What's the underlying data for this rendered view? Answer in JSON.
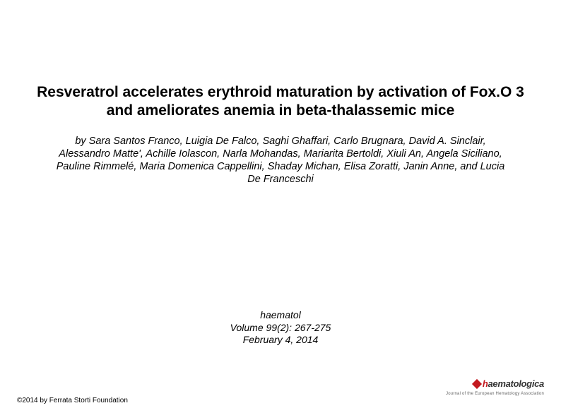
{
  "title": "Resveratrol accelerates erythroid maturation by activation of Fox.O 3 and ameliorates anemia in beta-thalassemic mice",
  "authors": "by Sara Santos Franco, Luigia De Falco, Saghi Ghaffari, Carlo Brugnara, David A. Sinclair, Alessandro Matte', Achille Iolascon, Narla Mohandas, Mariarita Bertoldi, Xiuli An, Angela Siciliano, Pauline Rimmelé, Maria Domenica Cappellini, Shaday Michan, Elisa Zoratti, Janin Anne, and Lucia De Franceschi",
  "citation": {
    "journal": "haematol",
    "volume": "Volume 99(2): 267-275",
    "date": "February 4, 2014"
  },
  "copyright": "©2014 by Ferrata Storti Foundation",
  "logo": {
    "prefix": "h",
    "rest": "aematologica",
    "subtitle": "Journal of the European Hematology Association"
  },
  "colors": {
    "text": "#000000",
    "background": "#ffffff",
    "logo_red": "#c3191f",
    "logo_dark": "#333333",
    "subtitle_gray": "#666666"
  }
}
